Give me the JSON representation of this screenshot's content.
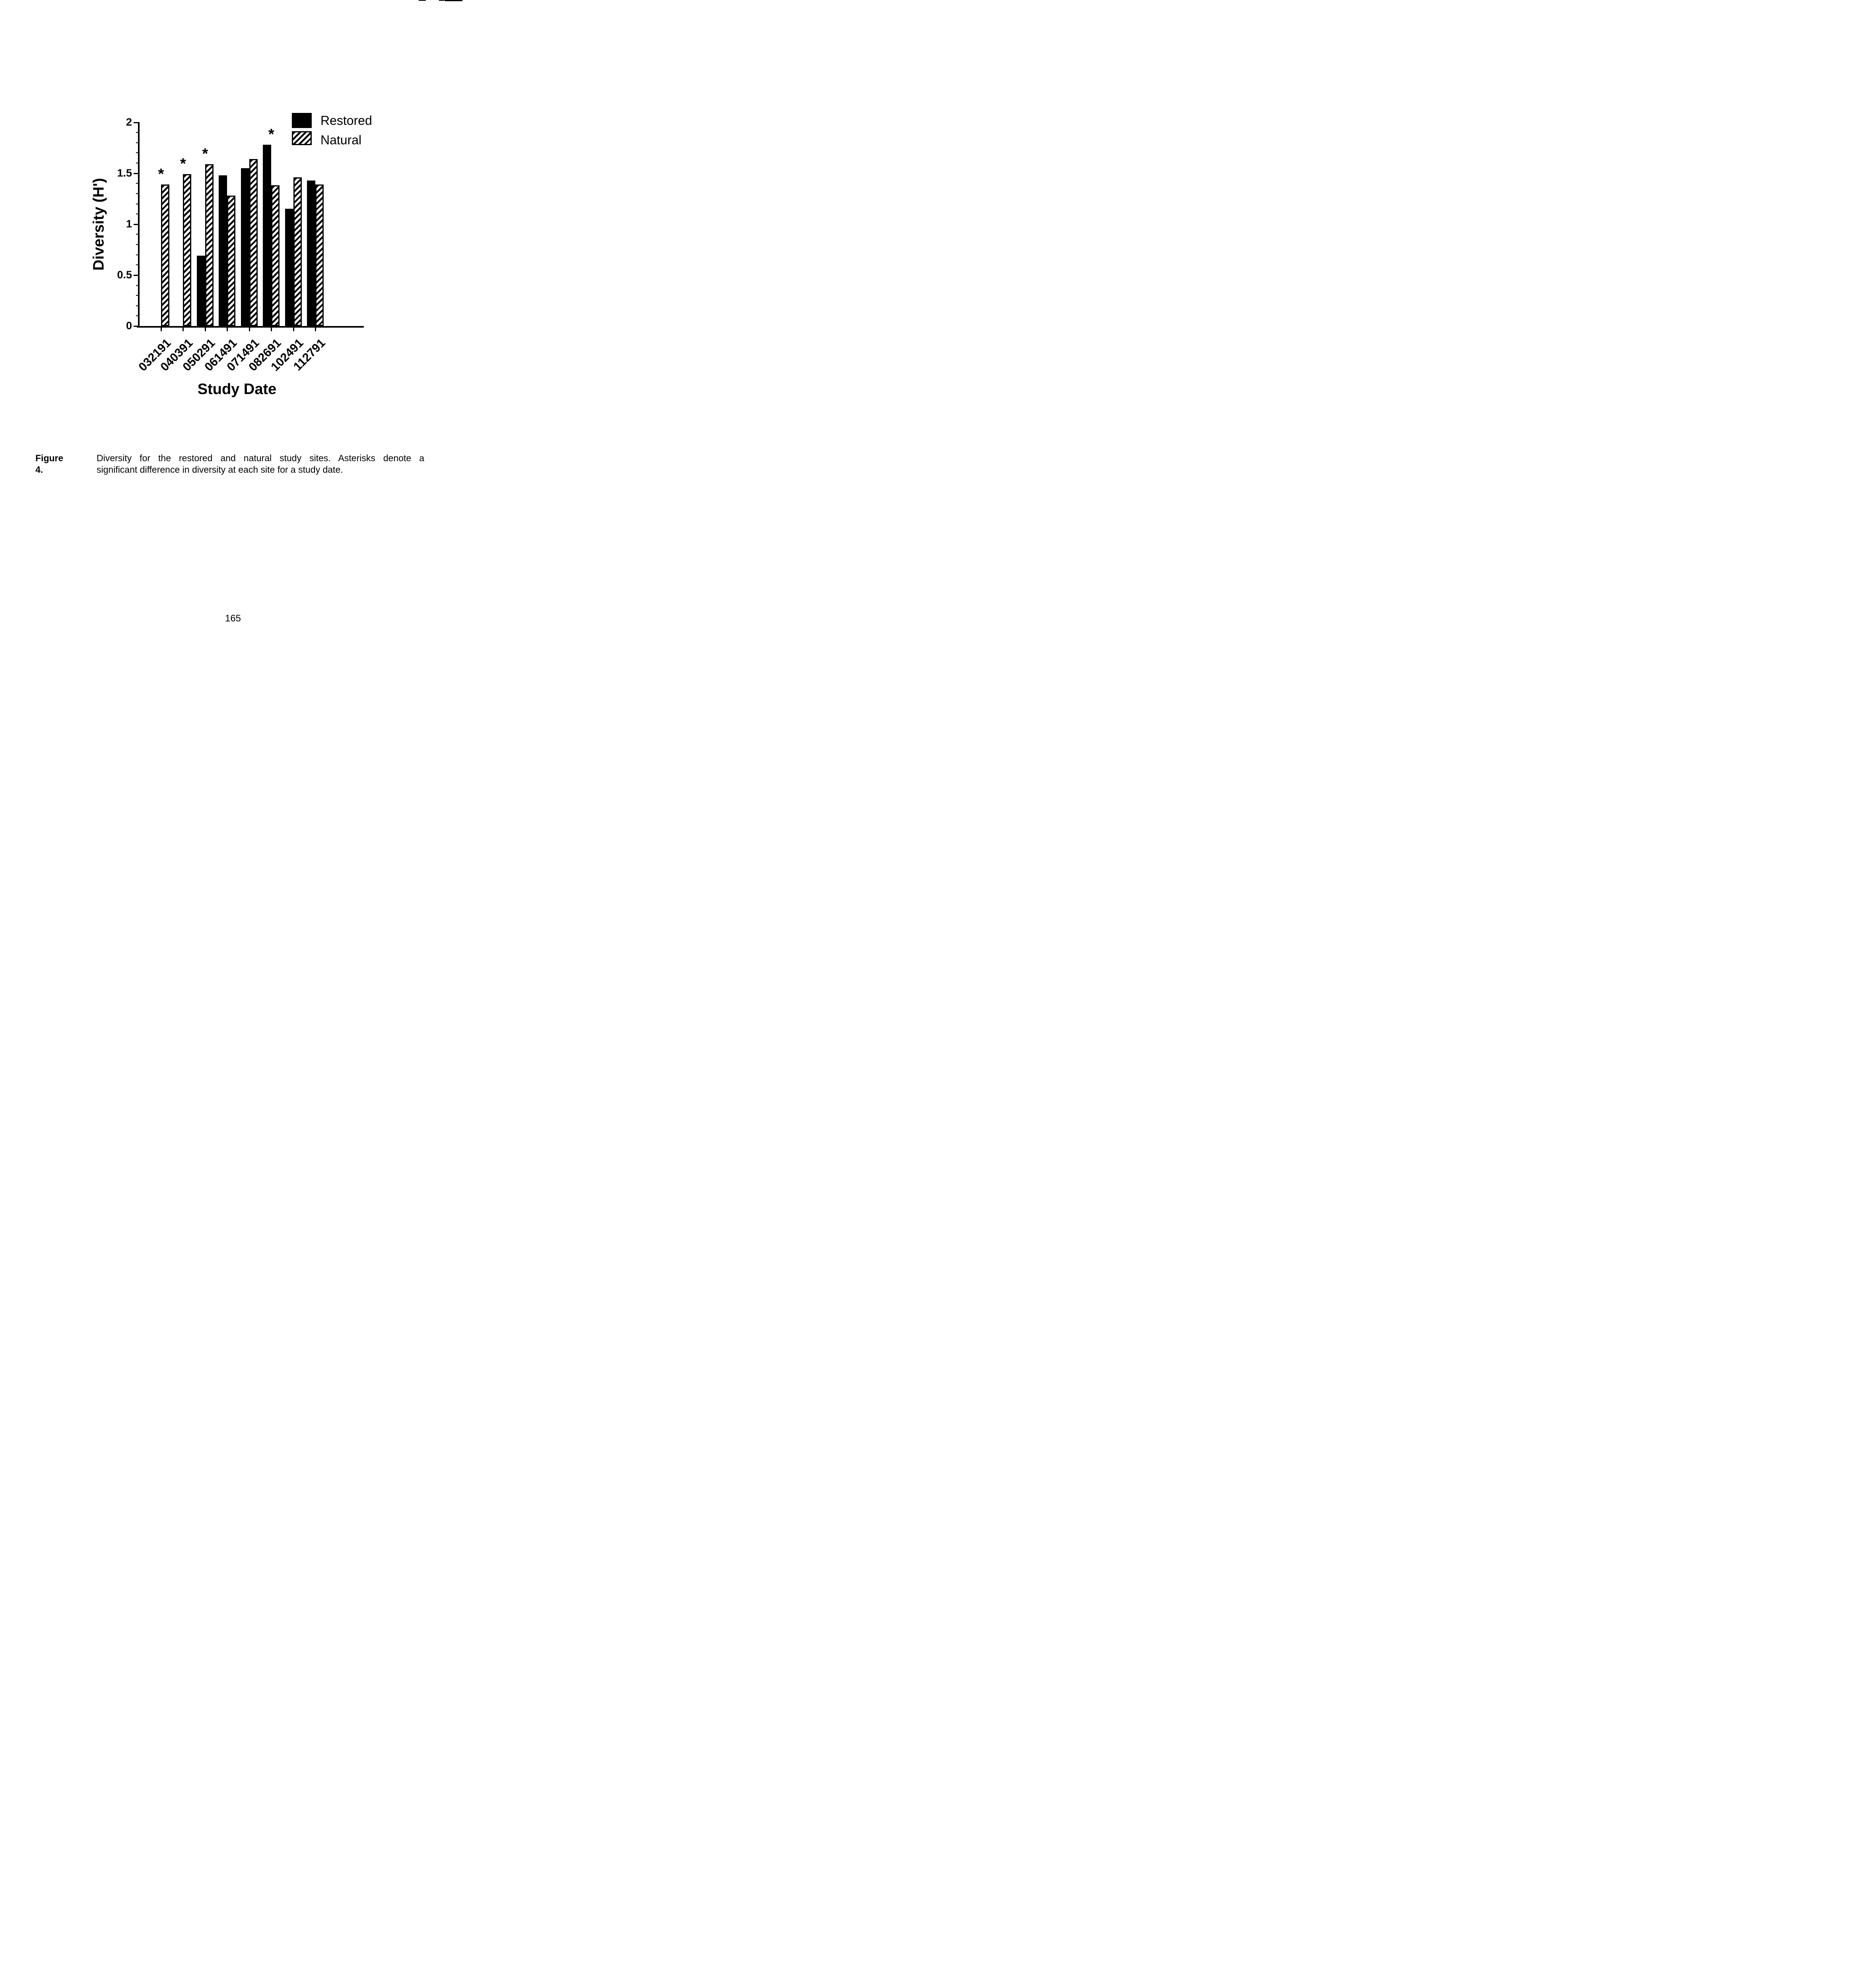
{
  "page": {
    "number": "165"
  },
  "figure_caption": {
    "label": "Figure 4.",
    "line1": "Diversity for the restored and natural study sites.  Asterisks denote a",
    "line2": "significant difference in diversity at each site for a study date."
  },
  "colors": {
    "ink": "#000000",
    "paper": "#ffffff"
  },
  "chart_data": {
    "type": "bar",
    "title": "",
    "xlabel": "Study Date",
    "ylabel": "Diversity (H')",
    "categories": [
      "032191",
      "040391",
      "050291",
      "061491",
      "071491",
      "082691",
      "102491",
      "112791"
    ],
    "series": [
      {
        "name": "Restored",
        "fill": "solid",
        "values": [
          null,
          null,
          0.69,
          1.48,
          1.55,
          1.78,
          1.15,
          1.43
        ]
      },
      {
        "name": "Natural",
        "fill": "hatch",
        "values": [
          1.39,
          1.49,
          1.59,
          1.28,
          1.64,
          1.38,
          1.46,
          1.39
        ]
      }
    ],
    "significant_categories": [
      "032191",
      "040391",
      "050291",
      "082691"
    ],
    "annotation_symbol": "*",
    "ylim": [
      0,
      2
    ],
    "y_major_ticks": [
      0,
      0.5,
      1,
      1.5,
      2
    ],
    "y_minor_tick_interval": 0.1,
    "grid": false,
    "legend_position": "top-right"
  }
}
